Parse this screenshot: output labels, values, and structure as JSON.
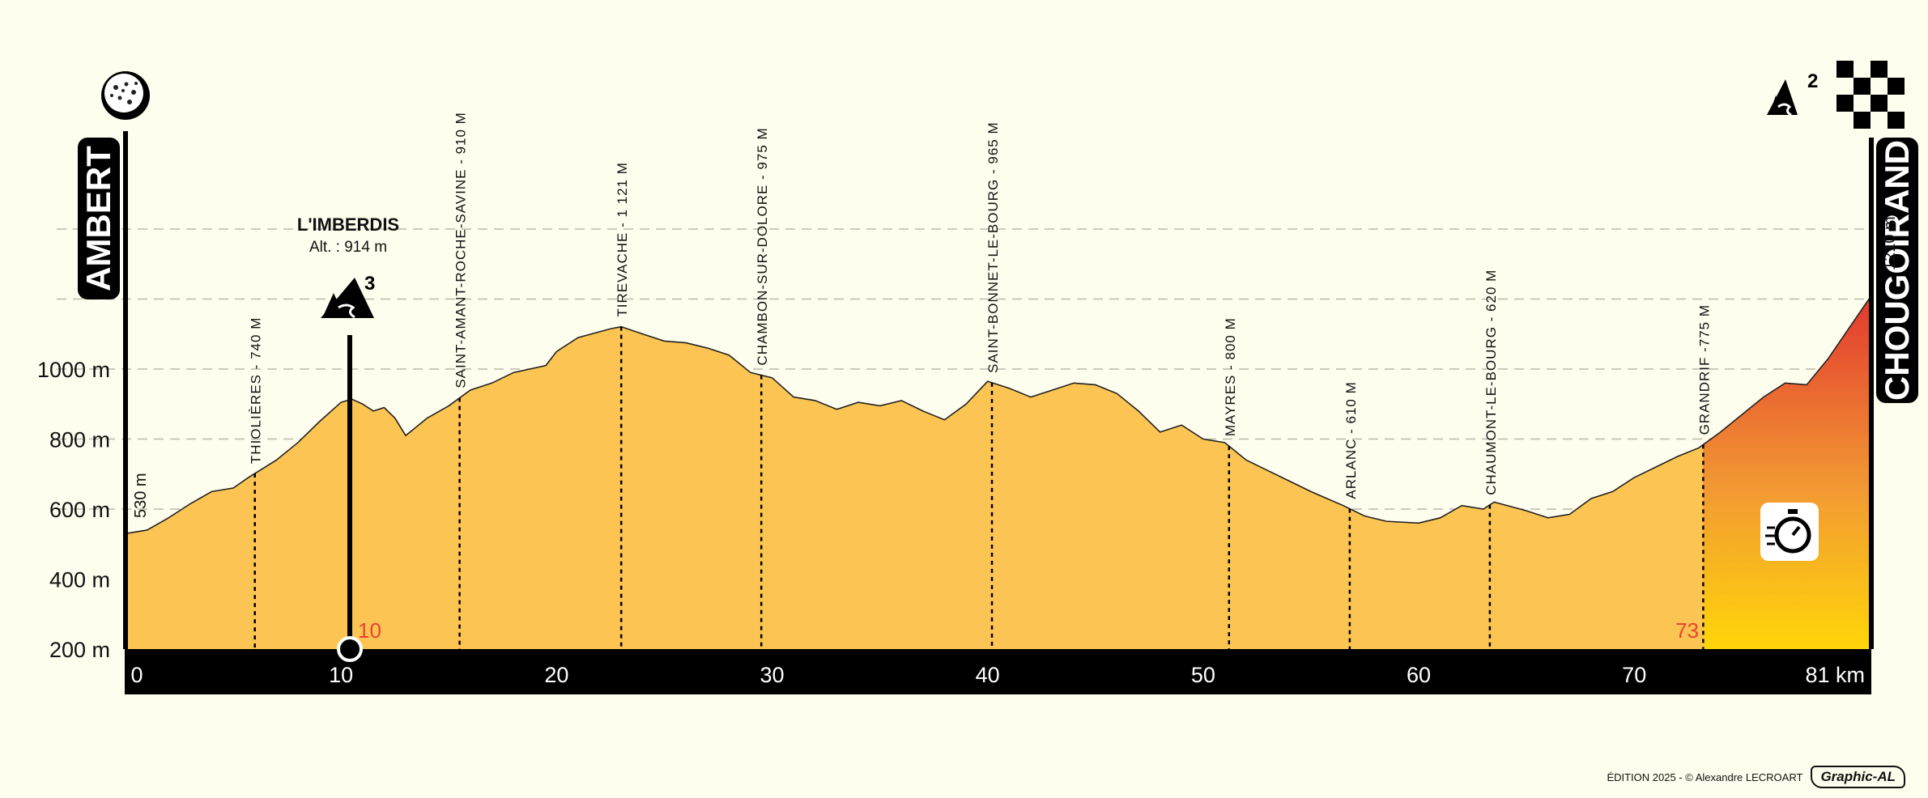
{
  "start_city": "AMBERT",
  "finish_city": "CHOUGOIRAND",
  "start_alt_label": "530 m",
  "finish_alt_label": "1210 m",
  "climb": {
    "name": "L'IMBERDIS",
    "alt": "Alt. : 914 m",
    "category": "3",
    "km": 10.5,
    "km_label": "10"
  },
  "finish_climb_category": "2",
  "timed_km_label": "73",
  "credit": "ÉDITION 2025 - © Alexandre LECROART",
  "brand": "Graphic-AL",
  "colors": {
    "profile": "#fcc553",
    "background": "#fefeee",
    "band": "#000000",
    "km_marker": "#e8432f"
  },
  "chart_data": {
    "type": "area",
    "title": "",
    "xlabel": "",
    "ylabel": "",
    "xlim": [
      0,
      81
    ],
    "ylim": [
      200,
      1210
    ],
    "y_ticks": [
      {
        "v": 200,
        "label": "200 m"
      },
      {
        "v": 400,
        "label": "400 m"
      },
      {
        "v": 600,
        "label": "600 m"
      },
      {
        "v": 800,
        "label": "800 m"
      },
      {
        "v": 1000,
        "label": "1000 m"
      }
    ],
    "dashed_levels": [
      600,
      800,
      1000,
      1200,
      1400
    ],
    "x_ticks": [
      {
        "v": 0,
        "label": "0"
      },
      {
        "v": 10,
        "label": "10"
      },
      {
        "v": 20,
        "label": "20"
      },
      {
        "v": 30,
        "label": "30"
      },
      {
        "v": 40,
        "label": "40"
      },
      {
        "v": 50,
        "label": "50"
      },
      {
        "v": 60,
        "label": "60"
      },
      {
        "v": 70,
        "label": "70"
      },
      {
        "v": 81,
        "label": "81 km"
      }
    ],
    "profile": [
      [
        0,
        530
      ],
      [
        1,
        540
      ],
      [
        2,
        575
      ],
      [
        3,
        615
      ],
      [
        4,
        650
      ],
      [
        5,
        660
      ],
      [
        5.7,
        690
      ],
      [
        7,
        740
      ],
      [
        8,
        790
      ],
      [
        9,
        850
      ],
      [
        10,
        905
      ],
      [
        10.5,
        914
      ],
      [
        11,
        900
      ],
      [
        11.5,
        880
      ],
      [
        12,
        890
      ],
      [
        12.5,
        860
      ],
      [
        13,
        810
      ],
      [
        14,
        860
      ],
      [
        15,
        895
      ],
      [
        16,
        940
      ],
      [
        17,
        960
      ],
      [
        18,
        990
      ],
      [
        19.5,
        1010
      ],
      [
        20,
        1050
      ],
      [
        21,
        1090
      ],
      [
        22.5,
        1115
      ],
      [
        23,
        1121
      ],
      [
        24,
        1100
      ],
      [
        25,
        1080
      ],
      [
        26,
        1075
      ],
      [
        27,
        1060
      ],
      [
        28,
        1040
      ],
      [
        29,
        990
      ],
      [
        30,
        975
      ],
      [
        31,
        920
      ],
      [
        32,
        910
      ],
      [
        33,
        885
      ],
      [
        34,
        905
      ],
      [
        35,
        895
      ],
      [
        36,
        910
      ],
      [
        37,
        880
      ],
      [
        38,
        855
      ],
      [
        39,
        900
      ],
      [
        40,
        965
      ],
      [
        41,
        945
      ],
      [
        42,
        920
      ],
      [
        43,
        940
      ],
      [
        44,
        960
      ],
      [
        45,
        955
      ],
      [
        46,
        930
      ],
      [
        47,
        880
      ],
      [
        48,
        820
      ],
      [
        49,
        840
      ],
      [
        50,
        800
      ],
      [
        51,
        790
      ],
      [
        52,
        740
      ],
      [
        53,
        710
      ],
      [
        54,
        680
      ],
      [
        55,
        650
      ],
      [
        56.5,
        610
      ],
      [
        57.5,
        580
      ],
      [
        58.5,
        565
      ],
      [
        60,
        560
      ],
      [
        61,
        575
      ],
      [
        62,
        610
      ],
      [
        63,
        600
      ],
      [
        63.5,
        620
      ],
      [
        65,
        595
      ],
      [
        66,
        575
      ],
      [
        67,
        585
      ],
      [
        68,
        630
      ],
      [
        69,
        650
      ],
      [
        70,
        690
      ],
      [
        71,
        720
      ],
      [
        72,
        750
      ],
      [
        73,
        775
      ],
      [
        74,
        820
      ],
      [
        75,
        870
      ],
      [
        76,
        920
      ],
      [
        77,
        960
      ],
      [
        78,
        955
      ],
      [
        79,
        1030
      ],
      [
        80,
        1120
      ],
      [
        81,
        1210
      ]
    ],
    "markers": [
      {
        "km": 6,
        "label": "THIOLIÈRES - 740 M"
      },
      {
        "km": 15.5,
        "label": "SAINT-AMANT-ROCHE-SAVINE - 910 M"
      },
      {
        "km": 23,
        "label": "TIREVACHE - 1 121 M"
      },
      {
        "km": 29.5,
        "label": "CHAMBON-SUR-DOLORE - 975 M"
      },
      {
        "km": 40.2,
        "label": "SAINT-BONNET-LE-BOURG - 965 M"
      },
      {
        "km": 51.2,
        "label": "MAYRES - 800 M"
      },
      {
        "km": 56.8,
        "label": "ARLANC - 610 M"
      },
      {
        "km": 63.3,
        "label": "CHAUMONT-LE-BOURG - 620 M"
      },
      {
        "km": 73.2,
        "label": "GRANDRIF -775 M"
      }
    ]
  }
}
